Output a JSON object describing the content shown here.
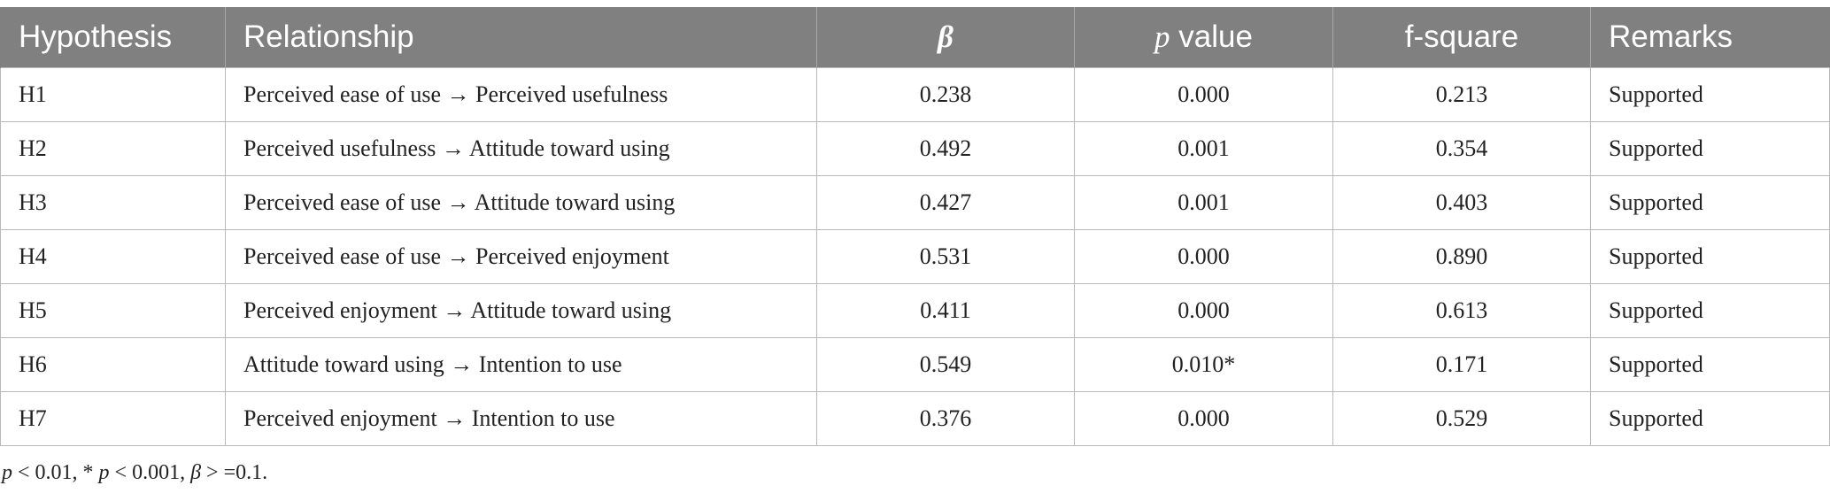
{
  "table": {
    "headers": {
      "hypothesis": "Hypothesis",
      "relationship": "Relationship",
      "beta": "β",
      "p_value_p": "p",
      "p_value_rest": " value",
      "f_square": "f-square",
      "remarks": "Remarks"
    },
    "rows": [
      {
        "hypothesis": "H1",
        "relationship": "Perceived ease of use → Perceived usefulness",
        "beta": "0.238",
        "p_value": "0.000",
        "f_square": "0.213",
        "remarks": "Supported"
      },
      {
        "hypothesis": "H2",
        "relationship": "Perceived usefulness → Attitude toward using",
        "beta": "0.492",
        "p_value": "0.001",
        "f_square": "0.354",
        "remarks": "Supported"
      },
      {
        "hypothesis": "H3",
        "relationship": "Perceived ease of use → Attitude toward using",
        "beta": "0.427",
        "p_value": "0.001",
        "f_square": "0.403",
        "remarks": "Supported"
      },
      {
        "hypothesis": "H4",
        "relationship": "Perceived ease of use → Perceived enjoyment",
        "beta": "0.531",
        "p_value": "0.000",
        "f_square": "0.890",
        "remarks": "Supported"
      },
      {
        "hypothesis": "H5",
        "relationship": "Perceived enjoyment → Attitude toward using",
        "beta": "0.411",
        "p_value": "0.000",
        "f_square": "0.613",
        "remarks": "Supported"
      },
      {
        "hypothesis": "H6",
        "relationship": "Attitude toward using → Intention to use",
        "beta": "0.549",
        "p_value": "0.010*",
        "f_square": "0.171",
        "remarks": "Supported"
      },
      {
        "hypothesis": "H7",
        "relationship": "Perceived enjoyment → Intention to use",
        "beta": "0.376",
        "p_value": "0.000",
        "f_square": "0.529",
        "remarks": "Supported"
      }
    ]
  },
  "footnote": {
    "p1": "p",
    "t1": " < 0.01, * ",
    "p2": "p",
    "t2": " < 0.001, ",
    "beta": "β",
    "t3": " > =0.1."
  }
}
